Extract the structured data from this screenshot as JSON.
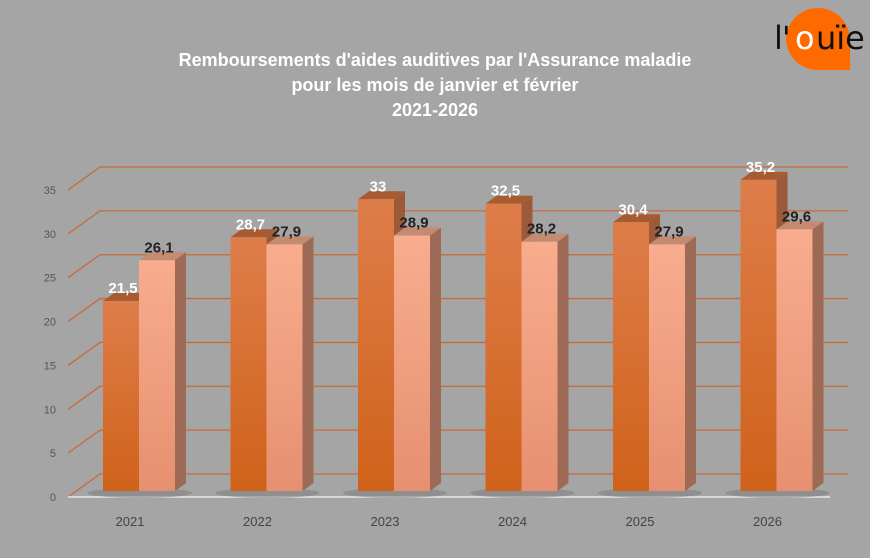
{
  "logo": {
    "text": "l'ouïe",
    "color": "#ff6a00"
  },
  "chart_data": {
    "type": "bar",
    "style": "3d-clustered",
    "title_lines": [
      "Remboursements d'aides auditives par l'Assurance maladie",
      "pour les mois de janvier et février",
      "2021-2026"
    ],
    "categories": [
      "2021",
      "2022",
      "2023",
      "2024",
      "2025",
      "2026"
    ],
    "series": [
      {
        "values": [
          21.5,
          28.7,
          33,
          32.5,
          30.4,
          35.2
        ],
        "labels": [
          "21,5",
          "28,7",
          "33",
          "32,5",
          "30,4",
          "35,2"
        ],
        "color": "#dd6e28",
        "label_color": "#ffffff"
      },
      {
        "values": [
          26.1,
          27.9,
          28.9,
          28.2,
          27.9,
          29.6
        ],
        "labels": [
          "26,1",
          "27,9",
          "28,9",
          "28,2",
          "27,9",
          "29,6"
        ],
        "color": "#f7a98a",
        "label_color": "#222222"
      }
    ],
    "yticks": [
      "0",
      "5",
      "10",
      "15",
      "20",
      "25",
      "30",
      "35"
    ],
    "ylim": [
      0,
      35
    ],
    "grid": true,
    "grid_color": "#c9693a",
    "background": "#a5a5a5"
  }
}
